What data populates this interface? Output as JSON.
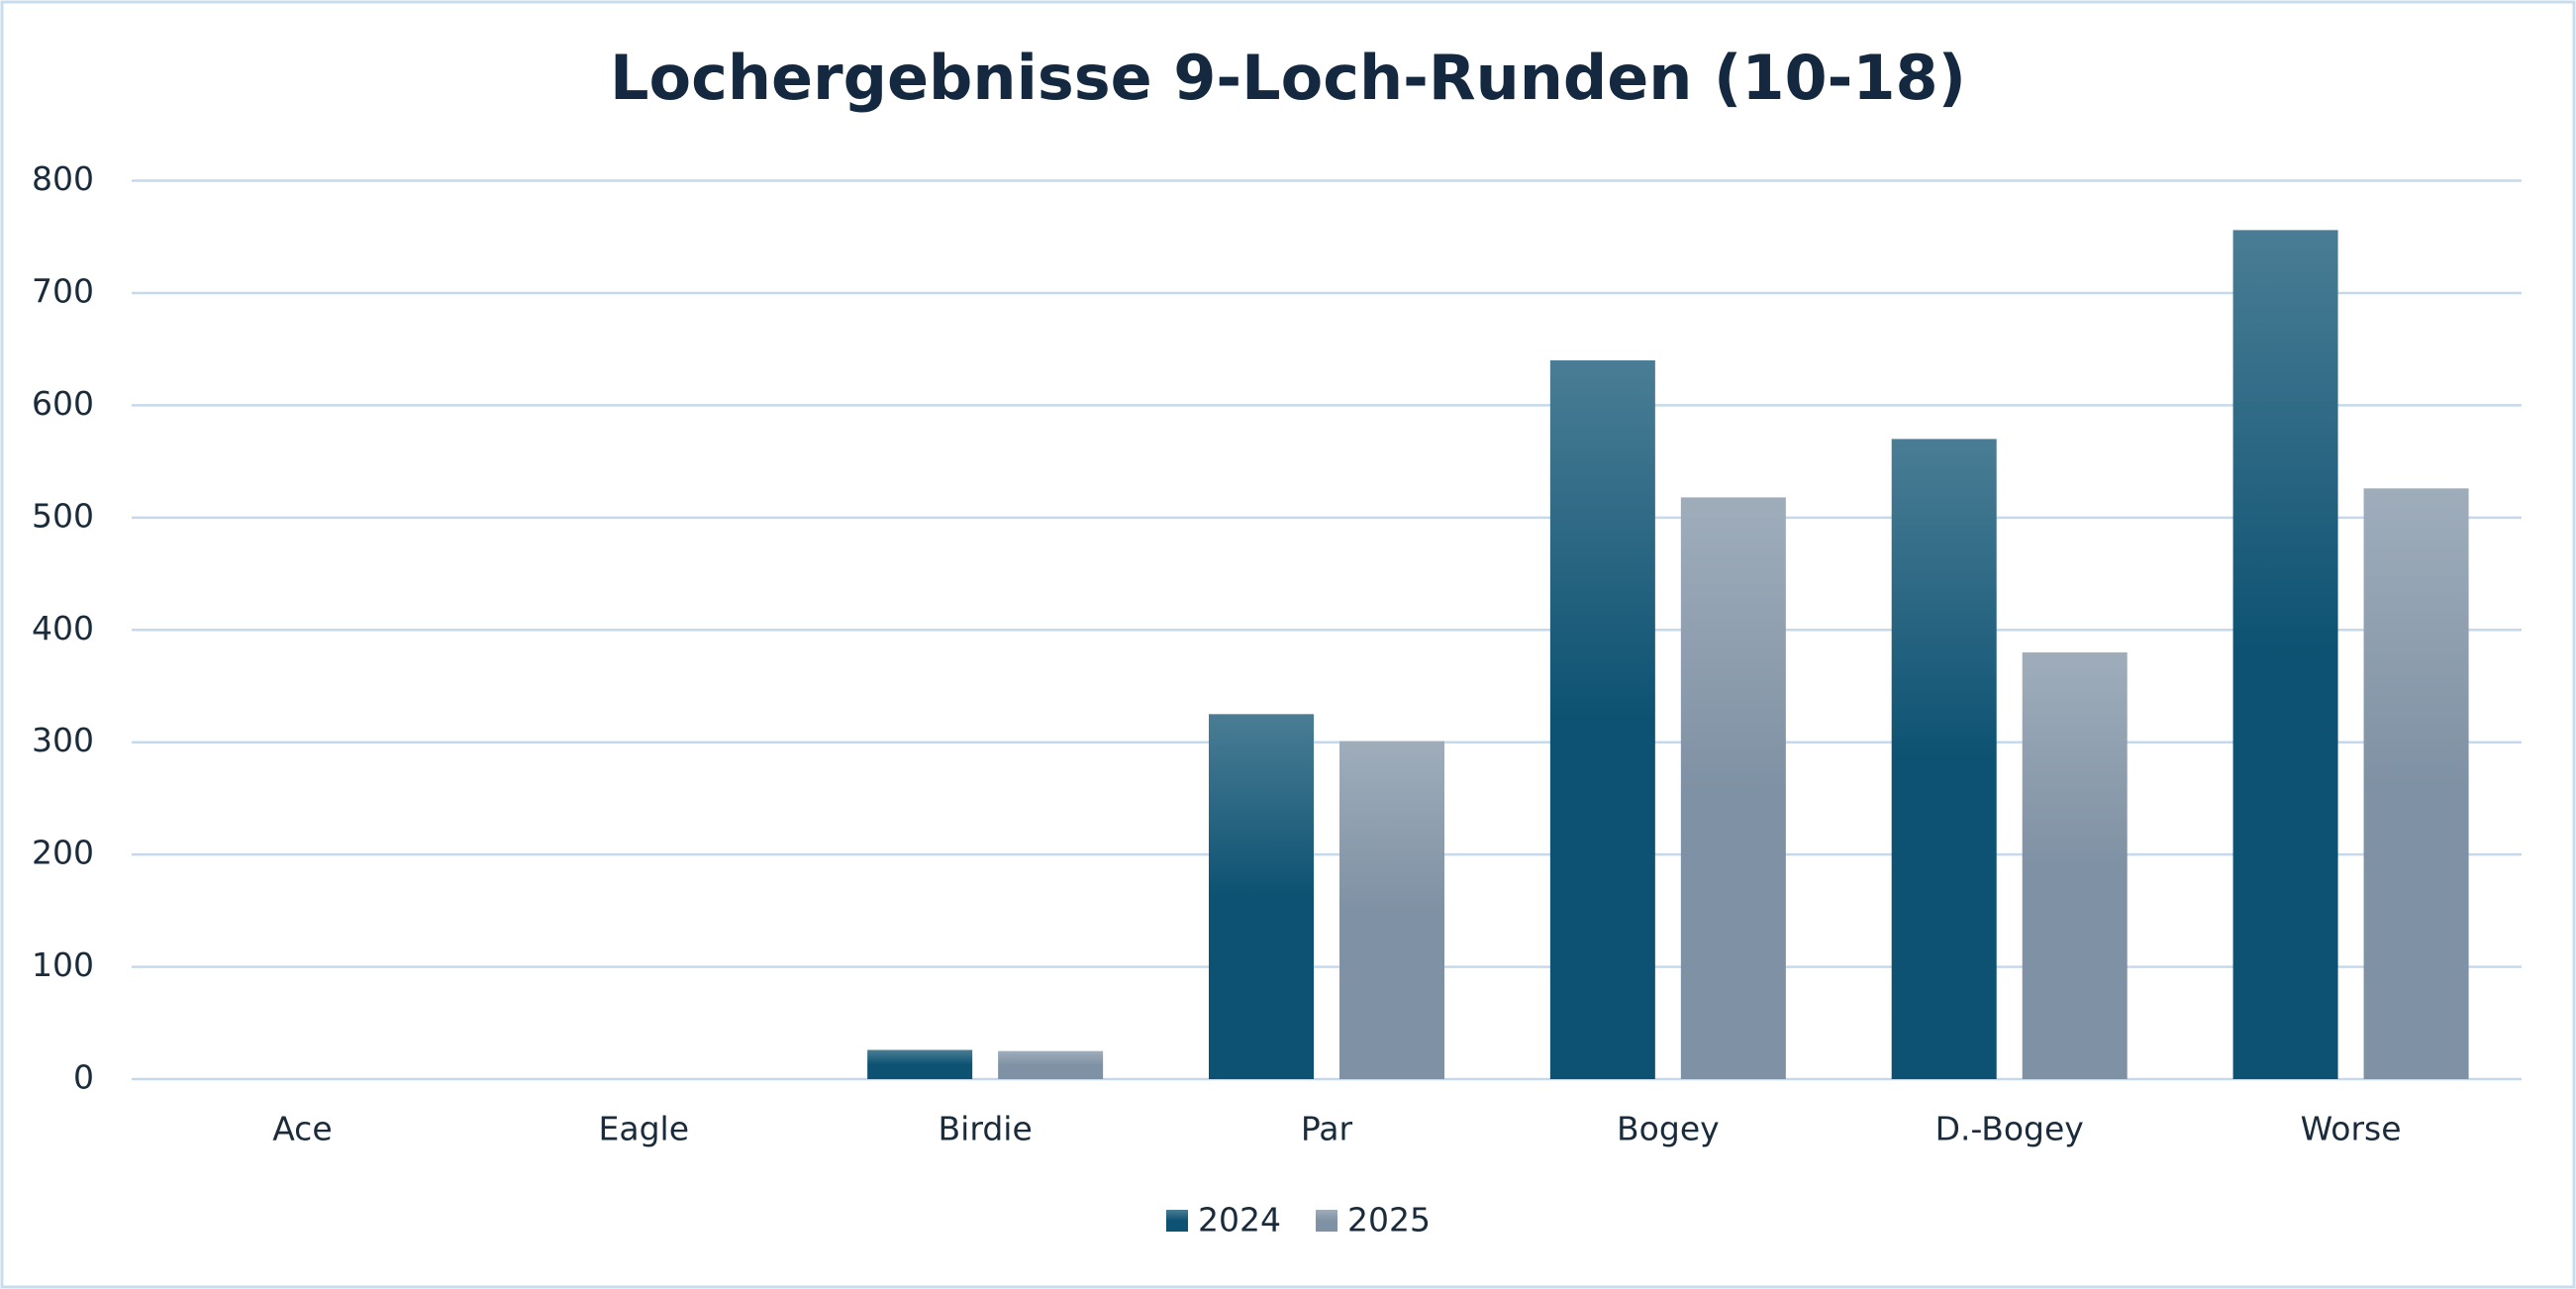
{
  "chart_data": {
    "type": "bar",
    "title": "Lochergebnisse 9-Loch-Runden (10-18)",
    "categories": [
      "Ace",
      "Eagle",
      "Birdie",
      "Par",
      "Bogey",
      "D.-Bogey",
      "Worse"
    ],
    "series": [
      {
        "name": "2024",
        "color": "#0d5272",
        "values": [
          0,
          0,
          26,
          325,
          640,
          570,
          756
        ]
      },
      {
        "name": "2025",
        "color": "#7f91a4",
        "values": [
          0,
          0,
          25,
          301,
          518,
          380,
          526
        ]
      }
    ],
    "ylim": [
      0,
      800
    ],
    "yticks": [
      0,
      100,
      200,
      300,
      400,
      500,
      600,
      700,
      800
    ],
    "grid": true,
    "legend": "bottom"
  }
}
